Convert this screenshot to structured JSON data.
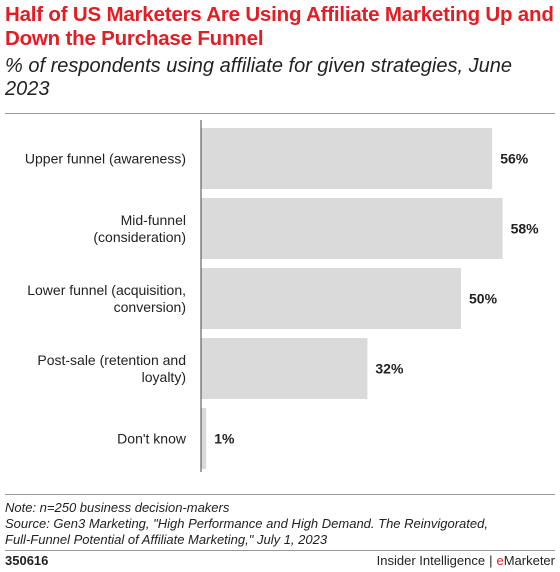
{
  "header": {
    "title": "Half of US Marketers Are Using Affiliate Marketing Up and Down the Purchase Funnel",
    "subtitle": "% of respondents using affiliate for given strategies, June 2023"
  },
  "chart_data": {
    "type": "bar",
    "orientation": "horizontal",
    "categories": [
      [
        "Upper funnel (awareness)"
      ],
      [
        "Mid-funnel",
        "(consideration)"
      ],
      [
        "Lower funnel (acquisition,",
        "conversion)"
      ],
      [
        "Post-sale (retention and",
        "loyalty)"
      ],
      [
        "Don't know"
      ]
    ],
    "values": [
      56,
      58,
      50,
      32,
      1
    ],
    "value_labels": [
      "56%",
      "58%",
      "50%",
      "32%",
      "1%"
    ],
    "unit": "%",
    "xlim": [
      0,
      60
    ],
    "bar_color": "#dadada",
    "grid": false
  },
  "notes": {
    "note": "Note: n=250 business decision-makers",
    "source_line1": "Source: Gen3 Marketing, \"High Performance and High Demand. The Reinvigorated,",
    "source_line2": "Full-Funnel Potential of Affiliate Marketing,\" July 1, 2023"
  },
  "footer": {
    "chart_id": "350616",
    "brand_left": "Insider Intelligence",
    "brand_sep": "|",
    "brand_e": "e",
    "brand_rest": "Marketer"
  },
  "colors": {
    "accent": "#e41c23",
    "bar": "#dadada",
    "text": "#222222"
  }
}
